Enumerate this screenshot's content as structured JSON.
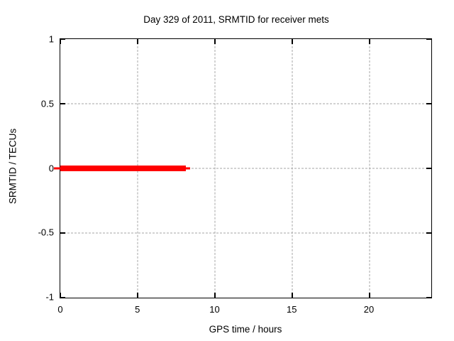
{
  "chart_data": {
    "type": "line",
    "title": "Day 329 of 2011, SRMTID for receiver mets",
    "xlabel": "GPS time / hours",
    "ylabel": "SRMTID / TECUs",
    "xlim": [
      0,
      24
    ],
    "ylim": [
      -1,
      1
    ],
    "xticks": [
      0,
      5,
      10,
      15,
      20
    ],
    "yticks": [
      1,
      0.5,
      0,
      -0.5,
      -1
    ],
    "grid": true,
    "legend_position": "none",
    "series": [
      {
        "name": "SRMTID",
        "color": "#ff0000",
        "y_value": 0,
        "x_start": 0,
        "x_end": 8.1
      }
    ],
    "colors": {
      "background": "#ffffff",
      "border": "#000000",
      "grid": "#a6a6a6",
      "text": "#000000",
      "series": "#ff0000"
    }
  }
}
